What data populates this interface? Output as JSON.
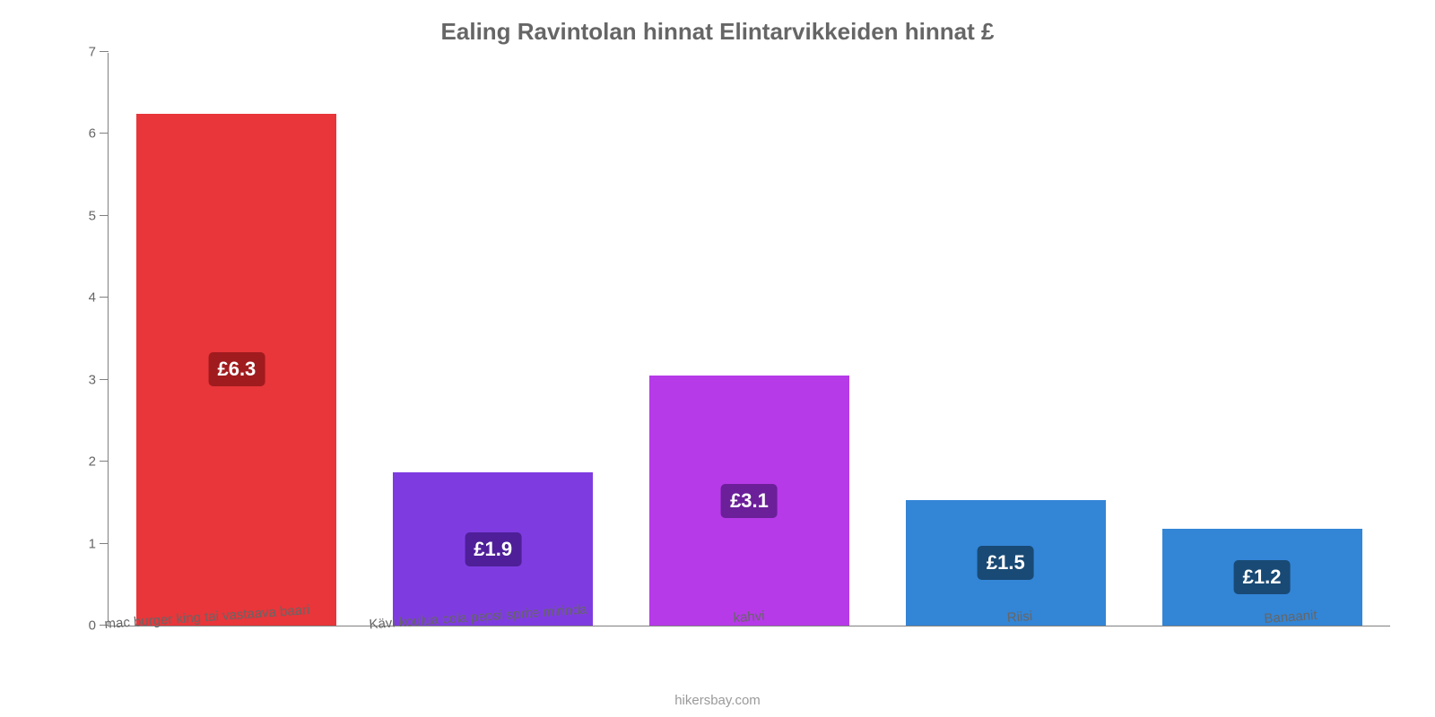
{
  "chart": {
    "type": "bar",
    "title": "Ealing Ravintolan hinnat Elintarvikkeiden hinnat £",
    "title_color": "#666666",
    "title_fontsize": 26,
    "background_color": "#ffffff",
    "axis_color": "#808080",
    "label_color": "#666666",
    "label_fontsize": 15,
    "ylim": [
      0,
      7
    ],
    "yticks": [
      0,
      1,
      2,
      3,
      4,
      5,
      6,
      7
    ],
    "bar_width_pct": 78,
    "xlabel_rotate_deg": -4,
    "categories": [
      "mac burger king tai vastaava baari",
      "Kävi koulua cola pepsi sprite mirinda",
      "kahvi",
      "Riisi",
      "Banaanit"
    ],
    "values": [
      6.25,
      1.87,
      3.05,
      1.53,
      1.18
    ],
    "value_labels": [
      "£6.3",
      "£1.9",
      "£3.1",
      "£1.5",
      "£1.2"
    ],
    "bar_colors": [
      "#e8363a",
      "#7e3ce0",
      "#b63ae8",
      "#3385d6",
      "#3385d6"
    ],
    "badge_colors": [
      "#a01b1e",
      "#4e1f98",
      "#6b1f98",
      "#184a75",
      "#184a75"
    ],
    "badge_text_color": "#ffffff",
    "badge_fontsize": 22,
    "footer": "hikersbay.com",
    "footer_color": "#9a9a9a"
  }
}
